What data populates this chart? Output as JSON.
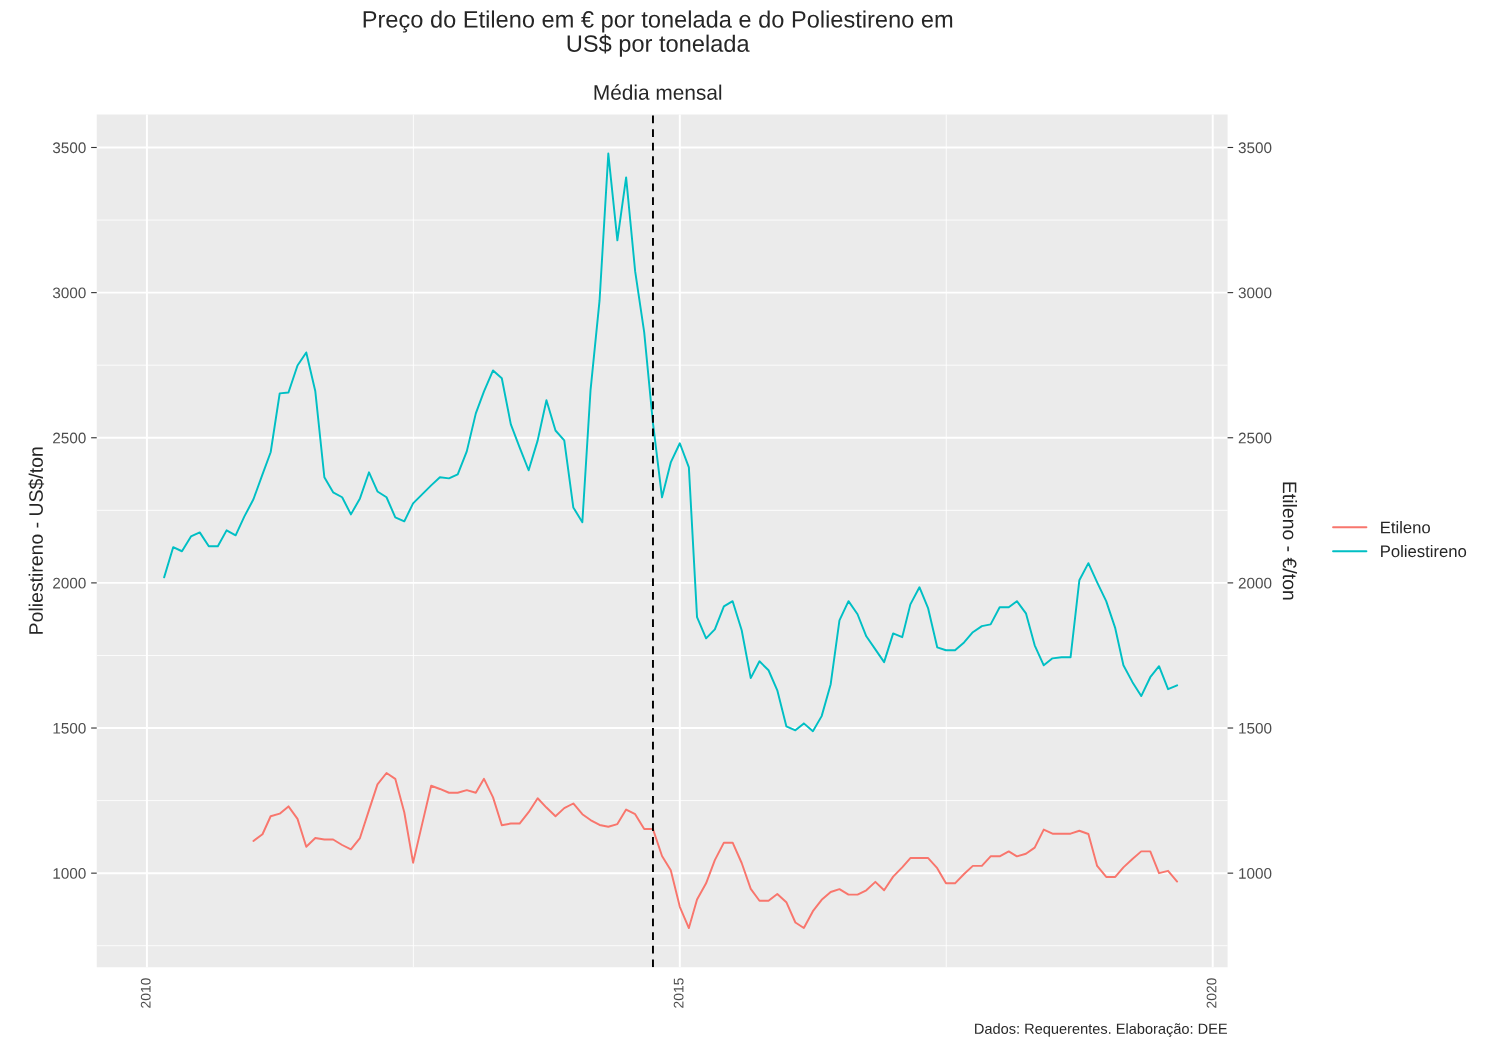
{
  "chart_data": {
    "type": "line",
    "title": "Preço do Etileno em € por tonelada e do Poliestireno em\nUS$ por tonelada",
    "subtitle": "Média mensal",
    "ylabel": "Poliestireno - US$/ton",
    "y2label": "Etileno - €/ton",
    "annotations": [
      "Dados: Requerentes. Elaboração: DEE"
    ],
    "x": [
      "2010-03",
      "2010-04",
      "2010-05",
      "2010-06",
      "2010-07",
      "2010-08",
      "2010-09",
      "2010-10",
      "2010-11",
      "2010-12",
      "2011-01",
      "2011-02",
      "2011-03",
      "2011-04",
      "2011-05",
      "2011-06",
      "2011-07",
      "2011-08",
      "2011-09",
      "2011-10",
      "2011-11",
      "2011-12",
      "2012-01",
      "2012-02",
      "2012-03",
      "2012-04",
      "2012-05",
      "2012-06",
      "2012-07",
      "2012-08",
      "2012-09",
      "2012-10",
      "2012-11",
      "2012-12",
      "2013-01",
      "2013-02",
      "2013-03",
      "2013-04",
      "2013-05",
      "2013-06",
      "2013-07",
      "2013-08",
      "2013-09",
      "2013-10",
      "2013-11",
      "2013-12",
      "2014-01",
      "2014-02",
      "2014-03",
      "2014-04",
      "2014-05",
      "2014-06",
      "2014-07",
      "2014-08",
      "2014-09",
      "2014-10",
      "2014-11",
      "2014-12",
      "2015-01",
      "2015-02",
      "2015-03",
      "2015-04",
      "2015-05",
      "2015-06",
      "2015-07",
      "2015-08",
      "2015-09",
      "2015-10",
      "2015-11",
      "2015-12",
      "2016-01",
      "2016-02",
      "2016-03",
      "2016-04",
      "2016-05",
      "2016-06",
      "2016-07",
      "2016-08",
      "2016-09",
      "2016-10",
      "2016-11",
      "2016-12",
      "2017-01",
      "2017-02",
      "2017-03",
      "2017-04",
      "2017-05",
      "2017-06",
      "2017-07",
      "2017-08",
      "2017-09",
      "2017-10",
      "2017-11",
      "2017-12",
      "2018-01",
      "2018-02",
      "2018-03",
      "2018-04",
      "2018-05",
      "2018-06",
      "2018-07",
      "2018-08",
      "2018-09",
      "2018-10",
      "2018-11",
      "2018-12",
      "2019-01",
      "2019-02",
      "2019-03",
      "2019-04",
      "2019-05",
      "2019-06",
      "2019-07",
      "2019-08",
      "2019-09"
    ],
    "series": [
      {
        "name": "Etileno",
        "color": "#f8766d",
        "axis": "y2",
        "values": [
          null,
          null,
          null,
          null,
          null,
          null,
          null,
          null,
          null,
          null,
          1111,
          1134,
          1196,
          1205,
          1230,
          1187,
          1091,
          1121,
          1116,
          1116,
          1097,
          1082,
          1121,
          1217,
          1306,
          1345,
          1325,
          1209,
          1036,
          1169,
          1301,
          1290,
          1277,
          1277,
          1286,
          1277,
          1325,
          1261,
          1165,
          1171,
          1171,
          1210,
          1258,
          1226,
          1196,
          1224,
          1240,
          1203,
          1183,
          1166,
          1160,
          1169,
          1219,
          1203,
          1152,
          1152,
          1059,
          1010,
          884,
          811,
          909,
          965,
          1045,
          1105,
          1105,
          1035,
          946,
          905,
          905,
          928,
          900,
          830,
          811,
          869,
          908,
          935,
          945,
          926,
          926,
          941,
          970,
          941,
          988,
          1020,
          1052,
          1052,
          1052,
          1017,
          965,
          965,
          997,
          1025,
          1025,
          1058,
          1058,
          1075,
          1058,
          1067,
          1088,
          1150,
          1136,
          1136,
          1136,
          1146,
          1135,
          1025,
          987,
          987,
          1020,
          1049,
          1075,
          1075,
          1000,
          1008,
          971
        ]
      },
      {
        "name": "Poliestireno",
        "color": "#00bfc4",
        "values": [
          2019,
          2123,
          2109,
          2160,
          2174,
          2126,
          2126,
          2181,
          2164,
          2229,
          2288,
          2374,
          2450,
          2653,
          2656,
          2749,
          2794,
          2660,
          2364,
          2312,
          2295,
          2236,
          2291,
          2381,
          2315,
          2295,
          2226,
          2212,
          2274,
          2305,
          2336,
          2364,
          2360,
          2374,
          2453,
          2584,
          2660,
          2732,
          2705,
          2546,
          2467,
          2388,
          2491,
          2629,
          2525,
          2491,
          2260,
          2209,
          2663,
          2973,
          3479,
          3180,
          3397,
          3073,
          2863,
          2550,
          2295,
          2415,
          2481,
          2398,
          1882,
          1809,
          1840,
          1919,
          1937,
          1837,
          1672,
          1730,
          1699,
          1630,
          1506,
          1492,
          1516,
          1489,
          1541,
          1651,
          1871,
          1937,
          1892,
          1816,
          1771,
          1727,
          1826,
          1813,
          1926,
          1985,
          1912,
          1778,
          1768,
          1768,
          1795,
          1830,
          1851,
          1857,
          1916,
          1916,
          1937,
          1895,
          1785,
          1716,
          1740,
          1744,
          1744,
          2009,
          2068,
          2002,
          1937,
          1844,
          1716,
          1658,
          1610,
          1675,
          1713,
          1634,
          1647
        ]
      }
    ],
    "xlim": [
      "2009-07-13",
      "2020-02-21"
    ],
    "xticks": [
      {
        "value": "2010-01-01",
        "label": "2010"
      },
      {
        "value": "2015-01-01",
        "label": "2015"
      },
      {
        "value": "2020-01-01",
        "label": "2020"
      }
    ],
    "ylim": [
      676,
      3614
    ],
    "yticks": [
      1000,
      1500,
      2000,
      2500,
      3000,
      3500
    ],
    "y2lim": [
      676,
      3614
    ],
    "y2ticks": [
      1000,
      1500,
      2000,
      2500,
      3000,
      3500
    ],
    "ref_lines": [
      {
        "axis": "x",
        "value": "2014-10",
        "color": "#000000",
        "line_style": "dashed"
      }
    ],
    "grid": true,
    "legend": "right",
    "line_style": "solid",
    "marker": "none"
  }
}
